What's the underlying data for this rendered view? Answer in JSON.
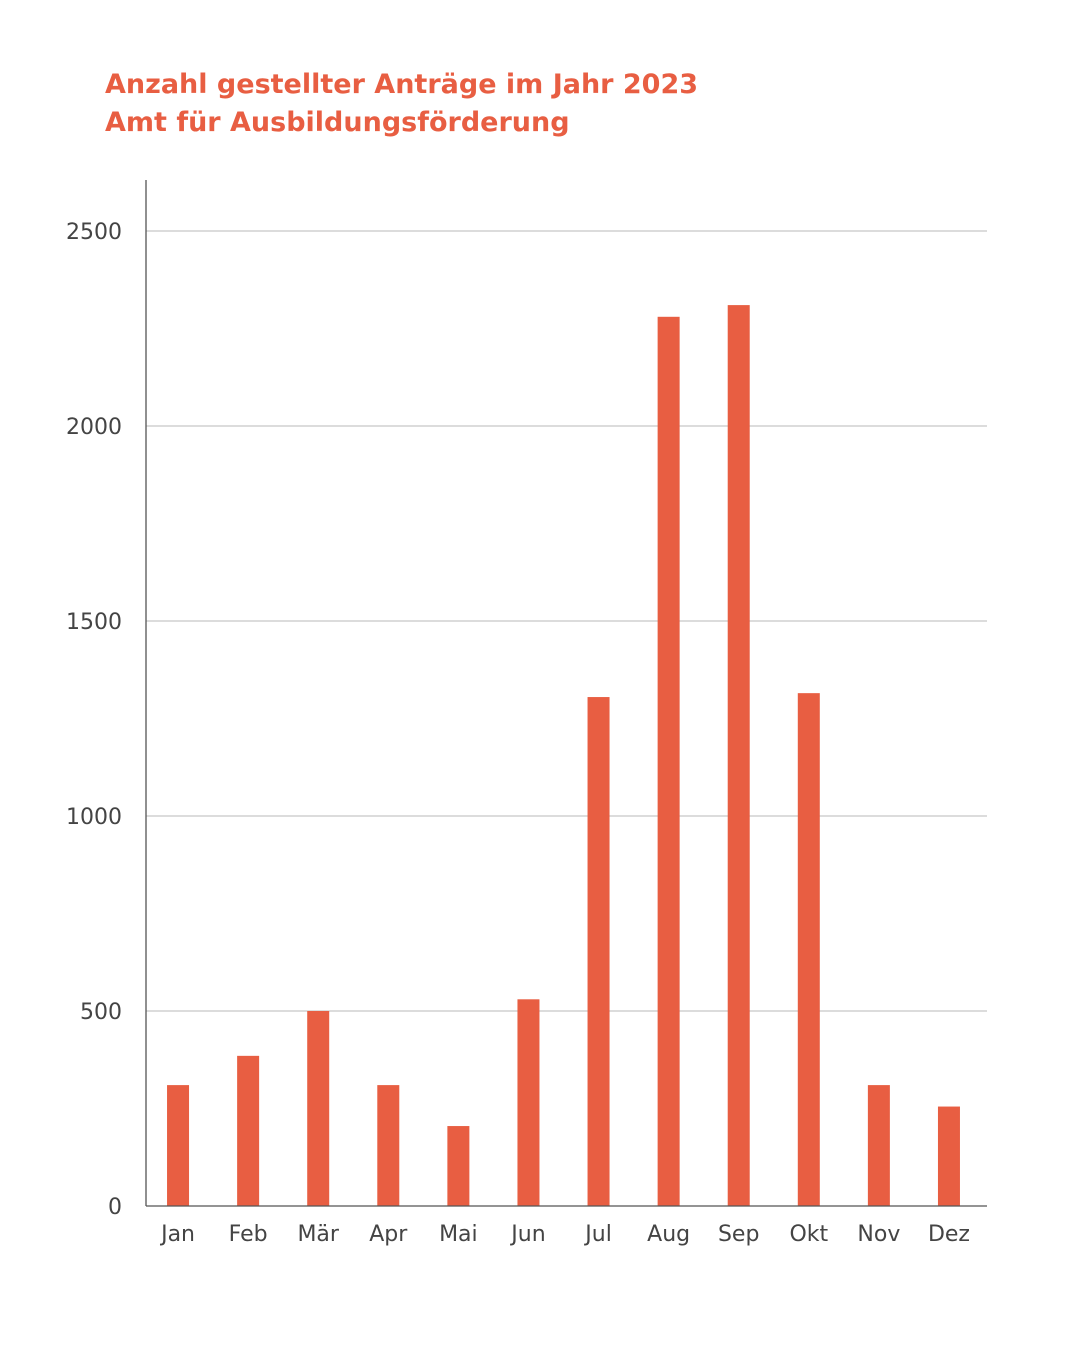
{
  "colors": {
    "bar": "#E85E42",
    "title": "#E85E42",
    "grid": "#c8c8c8",
    "axis": "#555555",
    "text": "#444444"
  },
  "chart_data": {
    "type": "bar",
    "title": "Anzahl gestellter Anträge im Jahr 2023",
    "subtitle": "Amt für Ausbildungsförderung",
    "xlabel": "",
    "ylabel": "",
    "categories": [
      "Jan",
      "Feb",
      "Mär",
      "Apr",
      "Mai",
      "Jun",
      "Jul",
      "Aug",
      "Sep",
      "Okt",
      "Nov",
      "Dez"
    ],
    "values": [
      310,
      385,
      500,
      310,
      205,
      530,
      1305,
      2280,
      2310,
      1315,
      310,
      255
    ],
    "ylim": [
      0,
      2500
    ],
    "yticks": [
      0,
      500,
      1000,
      1500,
      2000,
      2500
    ],
    "grid": true
  }
}
